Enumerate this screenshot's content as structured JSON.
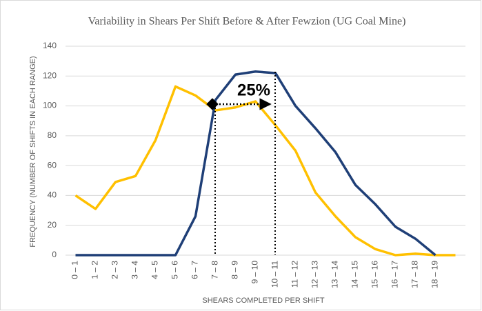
{
  "chart_data": {
    "type": "line",
    "title": "Variability in Shears Per Shift Before & After Fewzion (UG Coal Mine)",
    "x_label": "SHEARS COMPLETED PER SHIFT",
    "y_label": "FREQUENCY (NUMBER OF SHIFTS IN EACH RANGE)",
    "annotation": "25%",
    "categories": [
      "0 – 1",
      "1 – 2",
      "2 – 3",
      "3 – 4",
      "4 – 5",
      "5 – 6",
      "6 – 7",
      "7 – 8",
      "8 – 9",
      "9 – 10",
      "10 – 11",
      "11 – 12",
      "12 – 13",
      "13 – 14",
      "14 – 15",
      "15 – 16",
      "16 – 17",
      "17 – 18",
      "18 – 19",
      null
    ],
    "series": [
      {
        "color": "#ffc000",
        "values": [
          40,
          31,
          49,
          53,
          77,
          113,
          107,
          97,
          99,
          103,
          87,
          70,
          42,
          26,
          12,
          4,
          0,
          1,
          0,
          0
        ]
      },
      {
        "color": "#1f3f77",
        "values": [
          0,
          0,
          0,
          0,
          0,
          0,
          26,
          104,
          121,
          123,
          122,
          100,
          85,
          69,
          47,
          34,
          19,
          11,
          0,
          null
        ]
      }
    ],
    "ylim": [
      0,
      140
    ],
    "yticks": [
      0,
      20,
      40,
      60,
      80,
      100,
      120,
      140
    ],
    "grid": true
  }
}
